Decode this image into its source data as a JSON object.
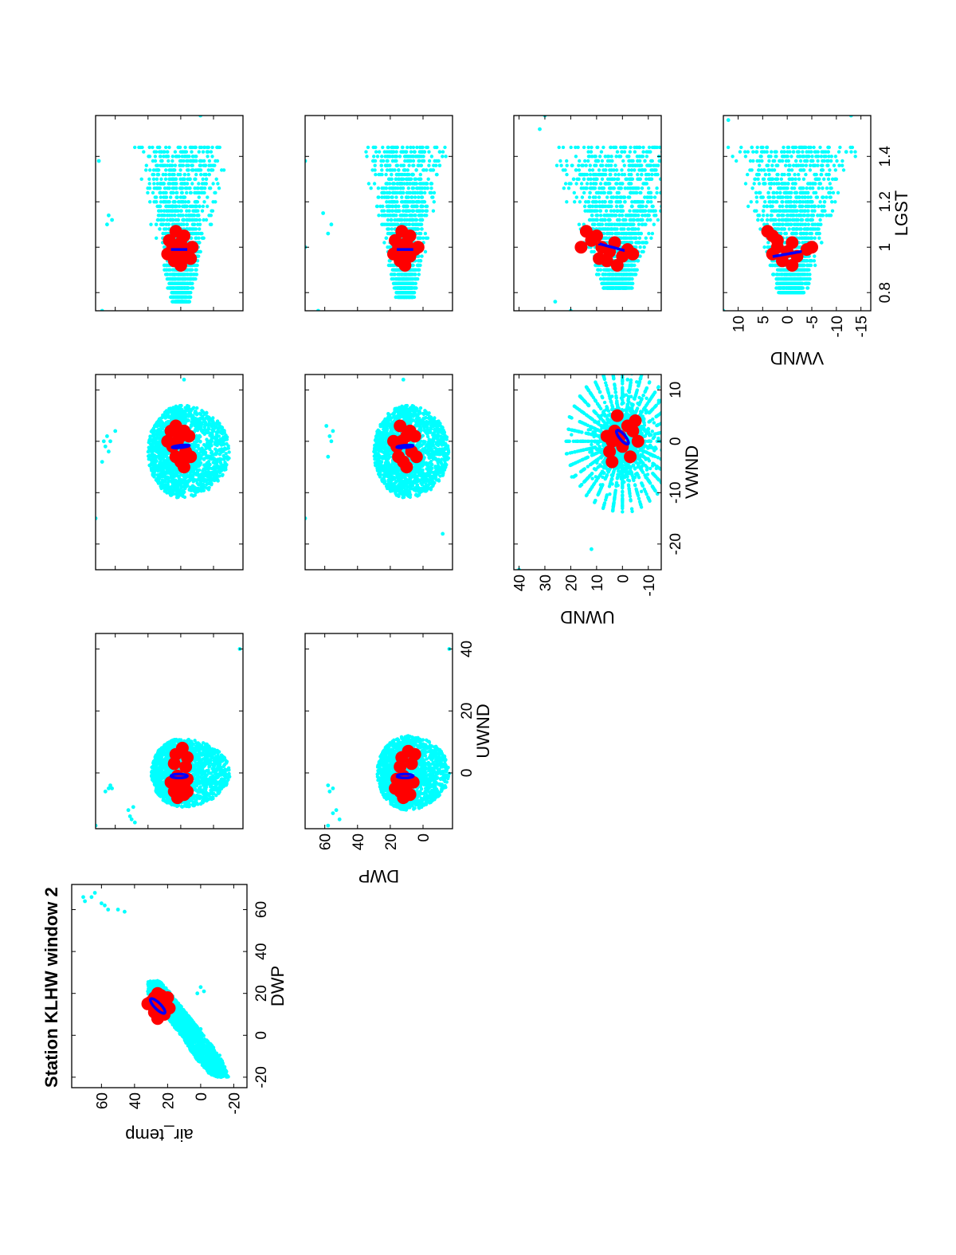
{
  "figure": {
    "title": "Station KLHW window 2",
    "orientation": "rotated 90 degrees counter-clockwise (landscape page shown in portrait)",
    "colors": {
      "samples": "#00ffff",
      "cluster_points": "#ff0000",
      "ellipse": "#0000ff",
      "axes": "#000000"
    }
  },
  "chart_data": [
    {
      "type": "scatter",
      "id": "p1",
      "title": "Station KLHW window 2",
      "xlabel": "DWP",
      "ylabel": "air_temp",
      "xlim": [
        -25,
        72
      ],
      "ylim": [
        -28,
        78
      ],
      "xticks": [
        -20,
        0,
        20,
        40,
        60
      ],
      "yticks": [
        -20,
        0,
        20,
        40,
        60
      ],
      "cloud_band": [
        [
          -20,
          -17,
          -7
        ],
        [
          -10,
          -12,
          4
        ],
        [
          0,
          -2,
          12
        ],
        [
          10,
          8,
          22
        ],
        [
          20,
          18,
          32
        ],
        [
          26,
          25,
          32
        ]
      ],
      "outliers": [
        [
          68,
          64
        ],
        [
          66,
          66
        ],
        [
          64,
          70
        ],
        [
          66,
          71
        ],
        [
          63,
          60
        ],
        [
          62,
          58
        ],
        [
          60,
          56
        ],
        [
          60,
          50
        ],
        [
          59,
          46
        ],
        [
          20,
          2
        ],
        [
          23,
          0
        ],
        [
          21,
          -2
        ],
        [
          3,
          0
        ]
      ],
      "red_points": [
        [
          13,
          28
        ],
        [
          16,
          30
        ],
        [
          18,
          28
        ],
        [
          12,
          25
        ],
        [
          15,
          24
        ],
        [
          17,
          21
        ],
        [
          19,
          24
        ],
        [
          10,
          22
        ],
        [
          13,
          19
        ],
        [
          20,
          26
        ],
        [
          8,
          26
        ],
        [
          15,
          32
        ],
        [
          18,
          20
        ],
        [
          11,
          28
        ]
      ],
      "ellipse": {
        "center": [
          14,
          26
        ],
        "major": 6,
        "minor": 2.4,
        "angle_deg": 45
      }
    },
    {
      "type": "scatter",
      "id": "p2",
      "xlabel": "",
      "ylabel": "",
      "xlim": [
        -18,
        45
      ],
      "ylim": [
        -18,
        72
      ],
      "xticks": [
        0,
        20,
        40
      ],
      "yticks": [
        0,
        20,
        40,
        60
      ],
      "show_xtick_labels": false,
      "show_ytick_labels": false,
      "cloud": {
        "center": [
          0,
          20
        ],
        "rx": 11,
        "ry_up": 18,
        "ry_down": 30
      },
      "outliers": [
        [
          -5,
          62
        ],
        [
          -5,
          64
        ],
        [
          -6,
          66
        ],
        [
          -4,
          63
        ],
        [
          -15,
          50
        ],
        [
          -14,
          51
        ],
        [
          -12,
          52
        ],
        [
          -11,
          49
        ],
        [
          -16,
          48
        ],
        [
          40,
          -16
        ],
        [
          -17,
          72
        ]
      ],
      "red_points": [
        [
          -6,
          24
        ],
        [
          -8,
          22
        ],
        [
          -4,
          20
        ],
        [
          -7,
          18
        ],
        [
          -6,
          16
        ],
        [
          -4,
          18
        ],
        [
          -1,
          22
        ],
        [
          3,
          24
        ],
        [
          6,
          23
        ],
        [
          8,
          19
        ],
        [
          -2,
          16
        ],
        [
          2,
          17
        ],
        [
          5,
          16
        ],
        [
          -3,
          26
        ]
      ],
      "ellipse": {
        "center": [
          -1,
          21
        ],
        "major": 5,
        "minor": 2.2,
        "angle_deg": 90
      }
    },
    {
      "type": "scatter",
      "id": "p3",
      "xlabel": "",
      "ylabel": "",
      "xlim": [
        -25,
        13
      ],
      "ylim": [
        -18,
        72
      ],
      "xticks": [
        -20,
        -10,
        0,
        10
      ],
      "yticks": [
        0,
        20,
        40,
        60
      ],
      "show_xtick_labels": false,
      "show_ytick_labels": false,
      "cloud": {
        "center": [
          -2,
          20
        ],
        "rx": 9,
        "ry_up": 20,
        "ry_down": 30
      },
      "outliers": [
        [
          2,
          60
        ],
        [
          0,
          63
        ],
        [
          1,
          65
        ],
        [
          0,
          67
        ],
        [
          -1,
          66
        ],
        [
          -2,
          64
        ],
        [
          -4,
          68
        ],
        [
          -15,
          72
        ],
        [
          12,
          18
        ]
      ],
      "red_points": [
        [
          -4,
          20
        ],
        [
          -3,
          23
        ],
        [
          -1,
          25
        ],
        [
          0,
          22
        ],
        [
          1,
          20
        ],
        [
          2,
          18
        ],
        [
          -2,
          17
        ],
        [
          3,
          23
        ],
        [
          1,
          15
        ],
        [
          -5,
          18
        ],
        [
          0,
          28
        ],
        [
          2,
          26
        ],
        [
          -3,
          14
        ]
      ],
      "ellipse": {
        "center": [
          -1,
          20
        ],
        "major": 5.2,
        "minor": 2.2,
        "angle_deg": 96
      }
    },
    {
      "type": "scatter",
      "id": "p4",
      "xlabel": "",
      "ylabel": "",
      "xlim": [
        0.72,
        1.58
      ],
      "ylim": [
        -18,
        72
      ],
      "xticks": [
        0.8,
        1,
        1.2,
        1.4
      ],
      "yticks": [
        0,
        20,
        40,
        60
      ],
      "show_xtick_labels": false,
      "show_ytick_labels": false,
      "cloud": {
        "x": [
          0.76,
          1.45
        ],
        "y_center": 20,
        "y_half_width": [
          6,
          32
        ]
      },
      "outliers": [
        [
          1.1,
          65
        ],
        [
          1.12,
          62
        ],
        [
          1.14,
          64
        ],
        [
          1.38,
          70
        ],
        [
          1.42,
          73
        ],
        [
          0.72,
          68
        ],
        [
          1.58,
          8
        ]
      ],
      "red_points": [
        [
          0.98,
          22
        ],
        [
          1.0,
          25
        ],
        [
          1.02,
          20
        ],
        [
          0.96,
          18
        ],
        [
          0.94,
          24
        ],
        [
          1.05,
          18
        ],
        [
          0.99,
          15
        ],
        [
          1.03,
          27
        ],
        [
          0.92,
          20
        ],
        [
          1.07,
          23
        ],
        [
          0.97,
          28
        ],
        [
          1.0,
          13
        ],
        [
          0.95,
          14
        ]
      ],
      "ellipse": {
        "center": [
          0.99,
          21
        ],
        "major": 5,
        "minor": 0.045,
        "angle_deg": 90
      }
    },
    {
      "type": "scatter",
      "id": "p5",
      "xlabel": "UWND",
      "ylabel": "DWP",
      "xlim": [
        -18,
        45
      ],
      "ylim": [
        -18,
        72
      ],
      "xticks": [
        0,
        20,
        40
      ],
      "yticks": [
        0,
        20,
        40,
        60
      ],
      "cloud": {
        "center": [
          0,
          10
        ],
        "rx": 12,
        "ry_up": 18,
        "ry_down": 26
      },
      "outliers": [
        [
          -5,
          55
        ],
        [
          -4,
          58
        ],
        [
          -6,
          57
        ],
        [
          -13,
          55
        ],
        [
          -12,
          53
        ],
        [
          -15,
          51
        ],
        [
          -17,
          58
        ],
        [
          40,
          -16
        ]
      ],
      "red_points": [
        [
          -6,
          14
        ],
        [
          -8,
          12
        ],
        [
          -4,
          10
        ],
        [
          -7,
          8
        ],
        [
          -3,
          6
        ],
        [
          -1,
          12
        ],
        [
          2,
          14
        ],
        [
          5,
          13
        ],
        [
          7,
          9
        ],
        [
          -2,
          16
        ],
        [
          3,
          7
        ],
        [
          6,
          5
        ],
        [
          -5,
          17
        ]
      ],
      "ellipse": {
        "center": [
          -1,
          11
        ],
        "major": 5,
        "minor": 2.2,
        "angle_deg": 90
      }
    },
    {
      "type": "scatter",
      "id": "p6",
      "xlabel": "",
      "ylabel": "",
      "xlim": [
        -25,
        13
      ],
      "ylim": [
        -18,
        72
      ],
      "xticks": [
        -20,
        -10,
        0,
        10
      ],
      "yticks": [
        0,
        20,
        40,
        60
      ],
      "show_xtick_labels": false,
      "show_ytick_labels": false,
      "cloud": {
        "center": [
          -2,
          10
        ],
        "rx": 9,
        "ry_up": 20,
        "ry_down": 26
      },
      "outliers": [
        [
          2,
          55
        ],
        [
          1,
          57
        ],
        [
          3,
          59
        ],
        [
          0,
          56
        ],
        [
          -3,
          58
        ],
        [
          -15,
          72
        ],
        [
          12,
          12
        ],
        [
          -18,
          -12
        ]
      ],
      "red_points": [
        [
          -4,
          12
        ],
        [
          -3,
          15
        ],
        [
          -1,
          16
        ],
        [
          0,
          13
        ],
        [
          1,
          10
        ],
        [
          2,
          8
        ],
        [
          -2,
          7
        ],
        [
          3,
          14
        ],
        [
          1,
          5
        ],
        [
          -5,
          10
        ],
        [
          0,
          18
        ],
        [
          -3,
          4
        ]
      ],
      "ellipse": {
        "center": [
          -1,
          11
        ],
        "major": 5,
        "minor": 2.2,
        "angle_deg": 95
      }
    },
    {
      "type": "scatter",
      "id": "p7",
      "xlabel": "",
      "ylabel": "",
      "xlim": [
        0.72,
        1.58
      ],
      "ylim": [
        -18,
        72
      ],
      "xticks": [
        0.8,
        1,
        1.2,
        1.4
      ],
      "yticks": [
        0,
        20,
        40,
        60
      ],
      "show_xtick_labels": false,
      "show_ytick_labels": false,
      "cloud": {
        "x": [
          0.78,
          1.45
        ],
        "y_center": 11,
        "y_half_width": [
          6,
          28
        ]
      },
      "outliers": [
        [
          1.06,
          58
        ],
        [
          1.1,
          56
        ],
        [
          1.15,
          61
        ],
        [
          1.0,
          72
        ],
        [
          1.38,
          72
        ],
        [
          0.72,
          64
        ]
      ],
      "red_points": [
        [
          0.98,
          12
        ],
        [
          1.0,
          15
        ],
        [
          1.02,
          10
        ],
        [
          0.96,
          8
        ],
        [
          0.94,
          14
        ],
        [
          1.05,
          8
        ],
        [
          0.99,
          5
        ],
        [
          1.03,
          17
        ],
        [
          0.92,
          11
        ],
        [
          1.07,
          13
        ],
        [
          0.97,
          18
        ],
        [
          1.0,
          3
        ]
      ],
      "ellipse": {
        "center": [
          0.99,
          11
        ],
        "major": 5,
        "minor": 0.045,
        "angle_deg": 90
      }
    },
    {
      "type": "scatter",
      "id": "p8",
      "xlabel": "VWND",
      "ylabel": "UWND",
      "xlim": [
        -25,
        13
      ],
      "ylim": [
        -15,
        42
      ],
      "xticks": [
        -20,
        -10,
        0,
        10
      ],
      "yticks": [
        -10,
        0,
        10,
        20,
        30,
        40
      ],
      "cloud": {
        "center": [
          0,
          0
        ],
        "radius_x": 14,
        "radius_y": 22,
        "radial": true
      },
      "outliers": [
        [
          -25,
          40
        ],
        [
          12,
          -2
        ],
        [
          -21,
          12
        ]
      ],
      "red_points": [
        [
          -2,
          5
        ],
        [
          0,
          4
        ],
        [
          2,
          3
        ],
        [
          1,
          1
        ],
        [
          -1,
          0
        ],
        [
          3,
          -2
        ],
        [
          2,
          -4
        ],
        [
          4,
          -5
        ],
        [
          -3,
          -3
        ],
        [
          0,
          -6
        ],
        [
          5,
          2
        ],
        [
          -4,
          4
        ],
        [
          1,
          6
        ]
      ],
      "ellipse": {
        "center": [
          0.8,
          0
        ],
        "major": 3.4,
        "minor": 2.2,
        "angle_deg": 40
      }
    },
    {
      "type": "scatter",
      "id": "p9",
      "xlabel": "",
      "ylabel": "",
      "xlim": [
        0.72,
        1.58
      ],
      "ylim": [
        -15,
        42
      ],
      "xticks": [
        0.8,
        1,
        1.2,
        1.4
      ],
      "yticks": [
        -10,
        0,
        10,
        20,
        30,
        40
      ],
      "show_xtick_labels": false,
      "show_ytick_labels": false,
      "cloud": {
        "x": [
          0.82,
          1.45
        ],
        "y_center": 2,
        "y_half_width": [
          6,
          30
        ]
      },
      "outliers": [
        [
          0.72,
          20
        ],
        [
          1.58,
          30
        ],
        [
          1.52,
          32
        ],
        [
          0.76,
          26
        ]
      ],
      "red_points": [
        [
          0.98,
          5
        ],
        [
          1.0,
          8
        ],
        [
          1.02,
          3
        ],
        [
          0.96,
          0
        ],
        [
          0.94,
          6
        ],
        [
          1.05,
          10
        ],
        [
          0.99,
          -2
        ],
        [
          1.03,
          12
        ],
        [
          0.92,
          2
        ],
        [
          1.07,
          14
        ],
        [
          0.97,
          -4
        ],
        [
          1.0,
          16
        ],
        [
          0.95,
          9
        ]
      ],
      "ellipse": {
        "center": [
          1.0,
          4
        ],
        "major": 5,
        "minor": 0.07,
        "angle_deg": 75
      }
    },
    {
      "type": "scatter",
      "id": "p10",
      "xlabel": "LGST",
      "ylabel": "VWND",
      "xlim": [
        0.72,
        1.58
      ],
      "ylim": [
        -17,
        13
      ],
      "xticks": [
        0.8,
        1,
        1.2,
        1.4
      ],
      "yticks": [
        -15,
        -10,
        -5,
        0,
        5,
        10
      ],
      "cloud": {
        "x": [
          0.8,
          1.45
        ],
        "y_center": -1,
        "y_half_width": [
          3,
          14
        ]
      },
      "outliers": [
        [
          1.58,
          -13
        ],
        [
          1.42,
          -12
        ],
        [
          0.72,
          13
        ],
        [
          1.56,
          12
        ]
      ],
      "red_points": [
        [
          0.98,
          0
        ],
        [
          1.0,
          2
        ],
        [
          1.02,
          -1
        ],
        [
          0.96,
          -2
        ],
        [
          0.94,
          1
        ],
        [
          1.05,
          3
        ],
        [
          0.99,
          -4
        ],
        [
          1.03,
          2
        ],
        [
          0.92,
          -1
        ],
        [
          1.07,
          4
        ],
        [
          0.97,
          3
        ],
        [
          1.0,
          -5
        ]
      ],
      "ellipse": {
        "center": [
          0.97,
          0
        ],
        "major": 3,
        "minor": 0.06,
        "angle_deg": 100
      }
    }
  ]
}
